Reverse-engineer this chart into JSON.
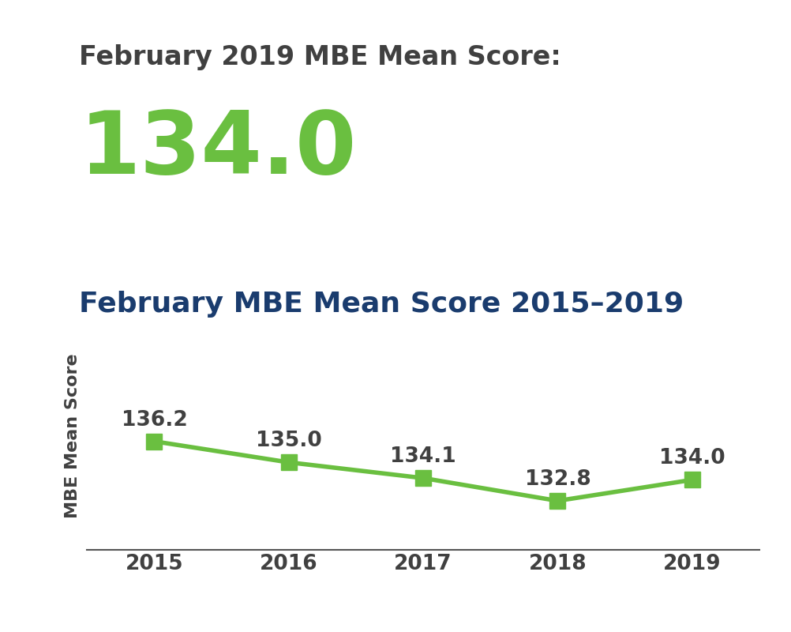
{
  "header_label": "February 2019 MBE Mean Score:",
  "header_value": "134.0",
  "header_label_color": "#404040",
  "header_value_color": "#6abf40",
  "chart_title": "February MBE Mean Score 2015–2019",
  "chart_title_color": "#1a3c6e",
  "years": [
    2015,
    2016,
    2017,
    2018,
    2019
  ],
  "scores": [
    136.2,
    135.0,
    134.1,
    132.8,
    134.0
  ],
  "line_color": "#6abf40",
  "marker_color": "#6abf40",
  "ylabel": "MBE Mean Score",
  "ylabel_color": "#404040",
  "xlabel_color": "#404040",
  "annotation_color": "#404040",
  "background_color": "#ffffff",
  "ylim_min": 130,
  "ylim_max": 140,
  "header_label_fontsize": 24,
  "header_value_fontsize": 80,
  "chart_title_fontsize": 26,
  "axis_label_fontsize": 16,
  "annotation_fontsize": 19,
  "tick_fontsize": 19,
  "line_width": 4,
  "marker_size": 14
}
